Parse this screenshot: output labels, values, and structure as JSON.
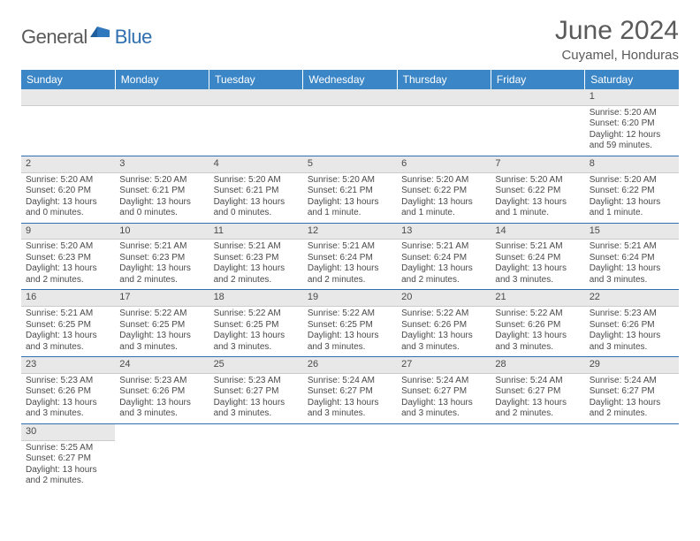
{
  "logo": {
    "general": "General",
    "blue": "Blue"
  },
  "title": "June 2024",
  "location": "Cuyamel, Honduras",
  "colors": {
    "header_bg": "#3b86c6",
    "header_text": "#ffffff",
    "border": "#2f6fb0",
    "daynum_bg": "#e8e8e8",
    "text": "#4a4a4a",
    "logo_gray": "#5a5a5a",
    "logo_blue": "#2f6fb0"
  },
  "typography": {
    "title_fontsize": 30,
    "location_fontsize": 15,
    "header_fontsize": 12,
    "daynum_fontsize": 11,
    "body_fontsize": 10
  },
  "weekdays": [
    "Sunday",
    "Monday",
    "Tuesday",
    "Wednesday",
    "Thursday",
    "Friday",
    "Saturday"
  ],
  "weeks": [
    [
      null,
      null,
      null,
      null,
      null,
      null,
      {
        "n": "1",
        "sr": "Sunrise: 5:20 AM",
        "ss": "Sunset: 6:20 PM",
        "dl": "Daylight: 12 hours and 59 minutes."
      }
    ],
    [
      {
        "n": "2",
        "sr": "Sunrise: 5:20 AM",
        "ss": "Sunset: 6:20 PM",
        "dl": "Daylight: 13 hours and 0 minutes."
      },
      {
        "n": "3",
        "sr": "Sunrise: 5:20 AM",
        "ss": "Sunset: 6:21 PM",
        "dl": "Daylight: 13 hours and 0 minutes."
      },
      {
        "n": "4",
        "sr": "Sunrise: 5:20 AM",
        "ss": "Sunset: 6:21 PM",
        "dl": "Daylight: 13 hours and 0 minutes."
      },
      {
        "n": "5",
        "sr": "Sunrise: 5:20 AM",
        "ss": "Sunset: 6:21 PM",
        "dl": "Daylight: 13 hours and 1 minute."
      },
      {
        "n": "6",
        "sr": "Sunrise: 5:20 AM",
        "ss": "Sunset: 6:22 PM",
        "dl": "Daylight: 13 hours and 1 minute."
      },
      {
        "n": "7",
        "sr": "Sunrise: 5:20 AM",
        "ss": "Sunset: 6:22 PM",
        "dl": "Daylight: 13 hours and 1 minute."
      },
      {
        "n": "8",
        "sr": "Sunrise: 5:20 AM",
        "ss": "Sunset: 6:22 PM",
        "dl": "Daylight: 13 hours and 1 minute."
      }
    ],
    [
      {
        "n": "9",
        "sr": "Sunrise: 5:20 AM",
        "ss": "Sunset: 6:23 PM",
        "dl": "Daylight: 13 hours and 2 minutes."
      },
      {
        "n": "10",
        "sr": "Sunrise: 5:21 AM",
        "ss": "Sunset: 6:23 PM",
        "dl": "Daylight: 13 hours and 2 minutes."
      },
      {
        "n": "11",
        "sr": "Sunrise: 5:21 AM",
        "ss": "Sunset: 6:23 PM",
        "dl": "Daylight: 13 hours and 2 minutes."
      },
      {
        "n": "12",
        "sr": "Sunrise: 5:21 AM",
        "ss": "Sunset: 6:24 PM",
        "dl": "Daylight: 13 hours and 2 minutes."
      },
      {
        "n": "13",
        "sr": "Sunrise: 5:21 AM",
        "ss": "Sunset: 6:24 PM",
        "dl": "Daylight: 13 hours and 2 minutes."
      },
      {
        "n": "14",
        "sr": "Sunrise: 5:21 AM",
        "ss": "Sunset: 6:24 PM",
        "dl": "Daylight: 13 hours and 3 minutes."
      },
      {
        "n": "15",
        "sr": "Sunrise: 5:21 AM",
        "ss": "Sunset: 6:24 PM",
        "dl": "Daylight: 13 hours and 3 minutes."
      }
    ],
    [
      {
        "n": "16",
        "sr": "Sunrise: 5:21 AM",
        "ss": "Sunset: 6:25 PM",
        "dl": "Daylight: 13 hours and 3 minutes."
      },
      {
        "n": "17",
        "sr": "Sunrise: 5:22 AM",
        "ss": "Sunset: 6:25 PM",
        "dl": "Daylight: 13 hours and 3 minutes."
      },
      {
        "n": "18",
        "sr": "Sunrise: 5:22 AM",
        "ss": "Sunset: 6:25 PM",
        "dl": "Daylight: 13 hours and 3 minutes."
      },
      {
        "n": "19",
        "sr": "Sunrise: 5:22 AM",
        "ss": "Sunset: 6:25 PM",
        "dl": "Daylight: 13 hours and 3 minutes."
      },
      {
        "n": "20",
        "sr": "Sunrise: 5:22 AM",
        "ss": "Sunset: 6:26 PM",
        "dl": "Daylight: 13 hours and 3 minutes."
      },
      {
        "n": "21",
        "sr": "Sunrise: 5:22 AM",
        "ss": "Sunset: 6:26 PM",
        "dl": "Daylight: 13 hours and 3 minutes."
      },
      {
        "n": "22",
        "sr": "Sunrise: 5:23 AM",
        "ss": "Sunset: 6:26 PM",
        "dl": "Daylight: 13 hours and 3 minutes."
      }
    ],
    [
      {
        "n": "23",
        "sr": "Sunrise: 5:23 AM",
        "ss": "Sunset: 6:26 PM",
        "dl": "Daylight: 13 hours and 3 minutes."
      },
      {
        "n": "24",
        "sr": "Sunrise: 5:23 AM",
        "ss": "Sunset: 6:26 PM",
        "dl": "Daylight: 13 hours and 3 minutes."
      },
      {
        "n": "25",
        "sr": "Sunrise: 5:23 AM",
        "ss": "Sunset: 6:27 PM",
        "dl": "Daylight: 13 hours and 3 minutes."
      },
      {
        "n": "26",
        "sr": "Sunrise: 5:24 AM",
        "ss": "Sunset: 6:27 PM",
        "dl": "Daylight: 13 hours and 3 minutes."
      },
      {
        "n": "27",
        "sr": "Sunrise: 5:24 AM",
        "ss": "Sunset: 6:27 PM",
        "dl": "Daylight: 13 hours and 3 minutes."
      },
      {
        "n": "28",
        "sr": "Sunrise: 5:24 AM",
        "ss": "Sunset: 6:27 PM",
        "dl": "Daylight: 13 hours and 2 minutes."
      },
      {
        "n": "29",
        "sr": "Sunrise: 5:24 AM",
        "ss": "Sunset: 6:27 PM",
        "dl": "Daylight: 13 hours and 2 minutes."
      }
    ],
    [
      {
        "n": "30",
        "sr": "Sunrise: 5:25 AM",
        "ss": "Sunset: 6:27 PM",
        "dl": "Daylight: 13 hours and 2 minutes."
      },
      null,
      null,
      null,
      null,
      null,
      null
    ]
  ]
}
